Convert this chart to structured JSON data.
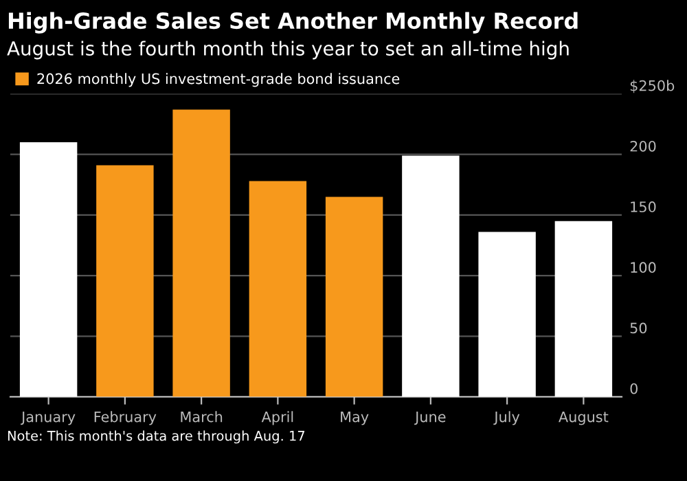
{
  "chart_data": {
    "type": "bar",
    "title": "High-Grade Sales Set Another Monthly Record",
    "subtitle": "August is the fourth month this year to set an all-time high",
    "categories": [
      "January",
      "February",
      "March",
      "April",
      "May",
      "June",
      "July",
      "August"
    ],
    "series": [
      {
        "name": "2026 monthly US investment-grade bond issuance",
        "color": "#f7991c",
        "values": [
          null,
          191,
          237,
          178,
          165,
          null,
          null,
          null
        ]
      },
      {
        "color": "#ffffff",
        "values": [
          210,
          null,
          null,
          null,
          null,
          199,
          136,
          145
        ]
      }
    ],
    "ylim": [
      0,
      250
    ],
    "yticks": [
      0,
      50,
      100,
      150,
      200,
      {
        "value": 250,
        "label": "$250b"
      }
    ],
    "grid": "y",
    "legend": "top left",
    "annotations": [
      "Note: This month's data are through Aug. 17"
    ]
  }
}
